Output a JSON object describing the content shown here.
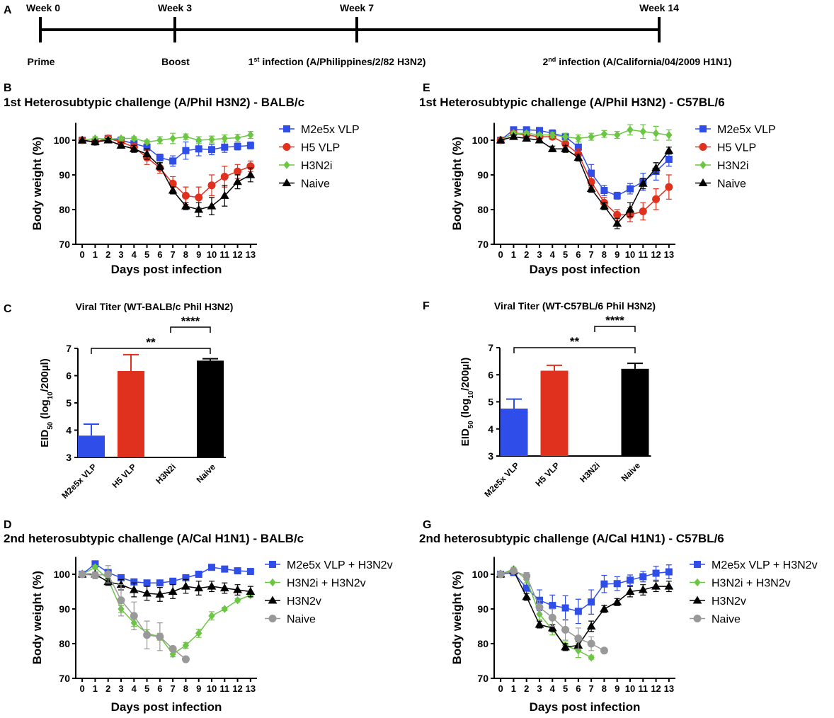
{
  "timeline": {
    "panel": "A",
    "weeks": [
      "Week 0",
      "Week 3",
      "Week 7",
      "Week 14"
    ],
    "events": [
      [
        "Prime"
      ],
      [
        "Boost"
      ],
      [
        "1",
        "st",
        " infection (A/Philippines/2/82 H3N2)"
      ],
      [
        "2",
        "nd",
        " infection (A/California/04/2009 H1N1)"
      ]
    ]
  },
  "chart_data": [
    {
      "panel": "B",
      "type": "line",
      "title": "1st Heterosubtypic challenge (A/Phil H3N2) - BALB/c",
      "xlabel": "Days post infection",
      "ylabel": "Body weight (%)",
      "x": [
        0,
        1,
        2,
        3,
        4,
        5,
        6,
        7,
        8,
        9,
        10,
        11,
        12,
        13
      ],
      "xlim": [
        -0.5,
        13.5
      ],
      "xticks": [
        0,
        1,
        2,
        3,
        4,
        5,
        6,
        7,
        8,
        9,
        10,
        11,
        12,
        13
      ],
      "ylim": [
        70,
        105
      ],
      "yticks": [
        70,
        80,
        90,
        100
      ],
      "series": [
        {
          "name": "M2e5x VLP",
          "color": "#2f4de8",
          "marker": "square",
          "values": [
            100,
            99.5,
            100.5,
            100,
            99,
            98,
            95,
            94,
            97,
            97.5,
            97.3,
            98,
            98.2,
            98.5
          ],
          "errors": [
            0,
            0.5,
            0.5,
            0.5,
            0.8,
            1,
            1,
            1.5,
            2.5,
            2,
            1.5,
            1.5,
            1,
            1
          ]
        },
        {
          "name": "H5 VLP",
          "color": "#e0301e",
          "marker": "circle",
          "values": [
            100,
            99.5,
            100.5,
            99.5,
            98,
            95,
            92,
            87.5,
            84,
            83.5,
            87,
            89.5,
            91,
            92.5
          ],
          "errors": [
            0,
            0.5,
            0.5,
            1,
            1,
            2,
            1.5,
            2,
            2.5,
            3,
            3,
            3,
            2,
            1.5
          ]
        },
        {
          "name": "H3N2i",
          "color": "#6cc644",
          "marker": "diamond",
          "values": [
            100,
            100.5,
            100.3,
            100.5,
            100.5,
            99.5,
            100,
            100.5,
            101,
            100,
            100.2,
            100.5,
            100.7,
            101.5
          ],
          "errors": [
            0,
            0.5,
            0.5,
            0.5,
            0.5,
            0.5,
            1,
            1.5,
            0.8,
            1,
            1,
            1,
            1,
            1
          ]
        },
        {
          "name": "Naive",
          "color": "#000000",
          "marker": "triangle",
          "values": [
            100,
            99.5,
            100,
            98.5,
            97.5,
            96,
            92.5,
            85.5,
            81,
            80,
            81,
            84,
            88,
            90
          ],
          "errors": [
            0,
            0.5,
            0.5,
            0.8,
            1,
            1.5,
            1,
            1,
            1,
            2,
            2.5,
            3,
            2,
            2
          ]
        }
      ]
    },
    {
      "panel": "E",
      "type": "line",
      "title": "1st Heterosubtypic challenge (A/Phil H3N2) - C57BL/6",
      "xlabel": "Days post infection",
      "ylabel": "Body weight (%)",
      "x": [
        0,
        1,
        2,
        3,
        4,
        5,
        6,
        7,
        8,
        9,
        10,
        11,
        12,
        13
      ],
      "xlim": [
        -0.5,
        13.5
      ],
      "xticks": [
        0,
        1,
        2,
        3,
        4,
        5,
        6,
        7,
        8,
        9,
        10,
        11,
        12,
        13
      ],
      "ylim": [
        70,
        105
      ],
      "yticks": [
        70,
        80,
        90,
        100
      ],
      "series": [
        {
          "name": "M2e5x VLP",
          "color": "#2f4de8",
          "marker": "square",
          "values": [
            100,
            103,
            103,
            102.8,
            102,
            101,
            98,
            90.5,
            85.5,
            84,
            86,
            88,
            91,
            94.5
          ],
          "errors": [
            0,
            0.5,
            0.5,
            0.5,
            1,
            1,
            1.5,
            2.5,
            1.5,
            1,
            1.5,
            2.5,
            2.5,
            2
          ]
        },
        {
          "name": "H5 VLP",
          "color": "#e0301e",
          "marker": "circle",
          "values": [
            100,
            102,
            101.5,
            101,
            101,
            99,
            96,
            88,
            82,
            78.5,
            78.5,
            79.5,
            83,
            86.5
          ],
          "errors": [
            0,
            0.5,
            0.5,
            0.5,
            0.8,
            1,
            1.5,
            1.5,
            1.5,
            1.5,
            2,
            2.5,
            3,
            3.5
          ]
        },
        {
          "name": "H3N2i",
          "color": "#6cc644",
          "marker": "diamond",
          "values": [
            100,
            102,
            102,
            101.5,
            101.5,
            101,
            100.5,
            101,
            101.8,
            101.5,
            103,
            102.5,
            102,
            101.5
          ],
          "errors": [
            0,
            0.5,
            0.5,
            0.5,
            0.8,
            1,
            1,
            1,
            1,
            1,
            1.5,
            2,
            2,
            1.5
          ]
        },
        {
          "name": "Naive",
          "color": "#000000",
          "marker": "triangle",
          "values": [
            100,
            101,
            100.5,
            100,
            97.5,
            97.5,
            95,
            86,
            81,
            76,
            80,
            87.5,
            92,
            97
          ],
          "errors": [
            0,
            0.5,
            0.5,
            0.5,
            0.8,
            1,
            1,
            1,
            1,
            1.5,
            2,
            1.5,
            1.5,
            1
          ]
        }
      ]
    },
    {
      "panel": "C",
      "type": "bar",
      "title": "Viral Titer (WT-BALB/c Phil H3N2)",
      "ylabel": [
        "EID",
        "50",
        " (log",
        "10",
        "/200µl)"
      ],
      "categories": [
        "M2e5x VLP",
        "H5 VLP",
        "H3N2i",
        "Naive"
      ],
      "values": [
        3.8,
        6.17,
        null,
        6.55
      ],
      "errors": [
        0.42,
        0.6,
        null,
        0.07
      ],
      "colors": [
        "#2f4de8",
        "#e0301e",
        "#ffffff",
        "#000000"
      ],
      "ylim": [
        3,
        7
      ],
      "yticks": [
        3,
        4,
        5,
        6,
        7
      ],
      "annotations": [
        {
          "text": "**",
          "between": [
            "M2e5x VLP",
            "Naive"
          ]
        },
        {
          "text": "****",
          "between": [
            "H3N2i",
            "Naive"
          ]
        }
      ]
    },
    {
      "panel": "F",
      "type": "bar",
      "title": "Viral Titer (WT-C57BL/6 Phil H3N2)",
      "ylabel": [
        "EID",
        "50",
        " (log",
        "10",
        "/200µl)"
      ],
      "categories": [
        "M2e5x VLP",
        "H5 VLP",
        "H3N2i",
        "Naive"
      ],
      "values": [
        4.75,
        6.15,
        null,
        6.22
      ],
      "errors": [
        0.35,
        0.2,
        null,
        0.2
      ],
      "colors": [
        "#2f4de8",
        "#e0301e",
        "#ffffff",
        "#000000"
      ],
      "ylim": [
        3,
        7
      ],
      "yticks": [
        3,
        4,
        5,
        6,
        7
      ],
      "annotations": [
        {
          "text": "**",
          "between": [
            "M2e5x VLP",
            "Naive"
          ]
        },
        {
          "text": "****",
          "between": [
            "H3N2i",
            "Naive"
          ]
        }
      ]
    },
    {
      "panel": "D",
      "type": "line",
      "title": "2nd heterosubtypic challenge (A/Cal H1N1) - BALB/c",
      "xlabel": "Days post infection",
      "ylabel": "Body weight (%)",
      "x": [
        0,
        1,
        2,
        3,
        4,
        5,
        6,
        7,
        8,
        9,
        10,
        11,
        12,
        13
      ],
      "xlim": [
        -0.5,
        13.5
      ],
      "xticks": [
        0,
        1,
        2,
        3,
        4,
        5,
        6,
        7,
        8,
        9,
        10,
        11,
        12,
        13
      ],
      "ylim": [
        70,
        105
      ],
      "yticks": [
        70,
        80,
        90,
        100
      ],
      "series": [
        {
          "name": "M2e5x VLP + H3N2v",
          "color": "#2f4de8",
          "marker": "square",
          "values": [
            100,
            103,
            100.5,
            99,
            97.8,
            97.5,
            97.5,
            98,
            99,
            100,
            102,
            101.5,
            101,
            100.8
          ],
          "errors": [
            0,
            0.5,
            0.5,
            0.5,
            0.5,
            0.5,
            0.5,
            0.5,
            0.5,
            0.5,
            0.5,
            0.5,
            0.5,
            0.5
          ]
        },
        {
          "name": "H3N2i + H3N2v",
          "color": "#6cc644",
          "marker": "diamond",
          "values": [
            100,
            102,
            98.5,
            90,
            86,
            83,
            82,
            77,
            79.5,
            83,
            88,
            90,
            92.5,
            94
          ],
          "errors": [
            0,
            0.5,
            1,
            1,
            1,
            1,
            1,
            0.8,
            0.8,
            1.2,
            1.2,
            0.5,
            0.5,
            0.5
          ]
        },
        {
          "name": "H3N2v",
          "color": "#000000",
          "marker": "triangle",
          "values": [
            100,
            100,
            97.8,
            97,
            95.5,
            94.5,
            94.2,
            95,
            96.5,
            96,
            96.5,
            96,
            95.5,
            95
          ],
          "errors": [
            0,
            0.5,
            1,
            1.5,
            2,
            2,
            2,
            2,
            2,
            2,
            1.5,
            1.5,
            1.5,
            1.5
          ]
        },
        {
          "name": "Naive",
          "color": "#999999",
          "marker": "circle",
          "values": [
            100,
            99.7,
            100,
            92.5,
            88,
            82.5,
            82,
            78.5,
            75.5,
            null,
            null,
            null,
            null,
            null
          ],
          "errors": [
            0,
            1,
            2.5,
            4.5,
            4,
            4,
            4,
            0.5,
            0.5,
            null,
            null,
            null,
            null,
            null
          ]
        }
      ]
    },
    {
      "panel": "G",
      "type": "line",
      "title": "2nd heterosubtypic challenge (A/Cal H1N1) - C57BL/6",
      "xlabel": "Days post infection",
      "ylabel": "Body weight (%)",
      "x": [
        0,
        1,
        2,
        3,
        4,
        5,
        6,
        7,
        8,
        9,
        10,
        11,
        12,
        13
      ],
      "xlim": [
        -0.5,
        13.5
      ],
      "xticks": [
        0,
        1,
        2,
        3,
        4,
        5,
        6,
        7,
        8,
        9,
        10,
        11,
        12,
        13
      ],
      "ylim": [
        70,
        105
      ],
      "yticks": [
        70,
        80,
        90,
        100
      ],
      "series": [
        {
          "name": "M2e5x VLP + H3N2v",
          "color": "#2f4de8",
          "marker": "square",
          "values": [
            100,
            100.5,
            96,
            92.5,
            91,
            90.3,
            89.3,
            92,
            97.2,
            97.3,
            98.3,
            99.3,
            100.3,
            100.7
          ],
          "errors": [
            0,
            0.5,
            1.5,
            3,
            3,
            3.5,
            3.5,
            3.5,
            2.5,
            2,
            1.5,
            1.5,
            2,
            2
          ]
        },
        {
          "name": "H3N2i + H3N2v",
          "color": "#6cc644",
          "marker": "diamond",
          "values": [
            100,
            101.5,
            98.5,
            88.5,
            84,
            79.5,
            78,
            76,
            null,
            null,
            null,
            null,
            null,
            null
          ],
          "errors": [
            0,
            0.5,
            1,
            1.5,
            1.5,
            1,
            2,
            0.5,
            null,
            null,
            null,
            null,
            null,
            null
          ]
        },
        {
          "name": "H3N2v",
          "color": "#000000",
          "marker": "triangle",
          "values": [
            100,
            101,
            93.5,
            85.5,
            84.5,
            79,
            79.5,
            85,
            90,
            92,
            95,
            95.5,
            96.5,
            96.5
          ],
          "errors": [
            0,
            0.5,
            1,
            1,
            1,
            1,
            1,
            1.5,
            1,
            1,
            1.5,
            1.5,
            1.5,
            1.5
          ]
        },
        {
          "name": "Naive",
          "color": "#999999",
          "marker": "circle",
          "values": [
            100,
            101,
            99.5,
            90.5,
            87.5,
            84,
            81.5,
            80,
            78,
            null,
            null,
            null,
            null,
            null
          ],
          "errors": [
            0,
            0.5,
            1,
            2,
            2.5,
            3,
            3,
            2,
            0.5,
            null,
            null,
            null,
            null,
            null
          ]
        }
      ]
    }
  ]
}
